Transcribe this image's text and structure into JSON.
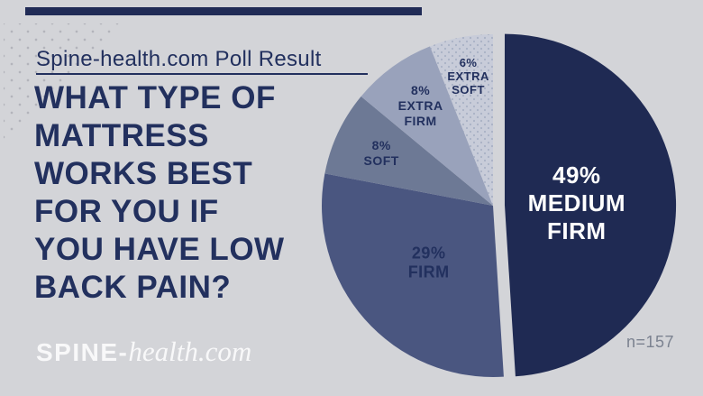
{
  "header": {
    "kicker": "Spine-health.com Poll Result",
    "title": "WHAT TYPE OF\nMATTRESS\nWORKS BEST\nFOR YOU IF\nYOU HAVE LOW\nBACK PAIN?"
  },
  "footer": {
    "logo_bold": "SPINE-",
    "logo_italic": "health.com"
  },
  "colors": {
    "background": "#d3d4d8",
    "navy_text": "#22305e",
    "accent_bar": "#202b56",
    "sample_text": "#7b8290",
    "logo_text": "#f8f8f9",
    "deco_dot": "#b3b4bb"
  },
  "chart_data": {
    "type": "pie",
    "question": "WHAT TYPE OF MATTRESS WORKS BEST FOR YOU IF YOU HAVE LOW BACK PAIN?",
    "sample_label": "n=157",
    "sample_size": 157,
    "start_angle_deg": 0,
    "direction": "clockwise",
    "legend_position": "none",
    "slices": [
      {
        "label": "MEDIUM FIRM",
        "pct": 49,
        "display_lines": [
          "49%",
          "MEDIUM",
          "FIRM"
        ],
        "color": "#1f2a53",
        "text_color": "#ffffff",
        "exploded": true,
        "texture": "none",
        "label_size": 26,
        "label_radius_frac": 0.42
      },
      {
        "label": "FIRM",
        "pct": 29,
        "display_lines": [
          "29%",
          "FIRM"
        ],
        "color": "#4a5680",
        "text_color": "#22305e",
        "exploded": false,
        "texture": "none",
        "label_size": 18,
        "label_radius_frac": 0.5
      },
      {
        "label": "SOFT",
        "pct": 8,
        "display_lines": [
          "8%",
          "SOFT"
        ],
        "color": "#6d7995",
        "text_color": "#22305e",
        "exploded": false,
        "texture": "none",
        "label_size": 14,
        "label_radius_frac": 0.72
      },
      {
        "label": "EXTRA FIRM",
        "pct": 8,
        "display_lines": [
          "8%",
          "EXTRA",
          "FIRM"
        ],
        "color": "#99a2bb",
        "text_color": "#22305e",
        "exploded": false,
        "texture": "none",
        "label_size": 14,
        "label_radius_frac": 0.72
      },
      {
        "label": "EXTRA SOFT",
        "pct": 6,
        "display_lines": [
          "6%",
          "EXTRA",
          "SOFT"
        ],
        "color": "#c8ccd9",
        "text_color": "#22305e",
        "exploded": false,
        "texture": "dots",
        "texture_dot_color": "#a9b1c5",
        "label_size": 13,
        "label_radius_frac": 0.77
      }
    ]
  }
}
